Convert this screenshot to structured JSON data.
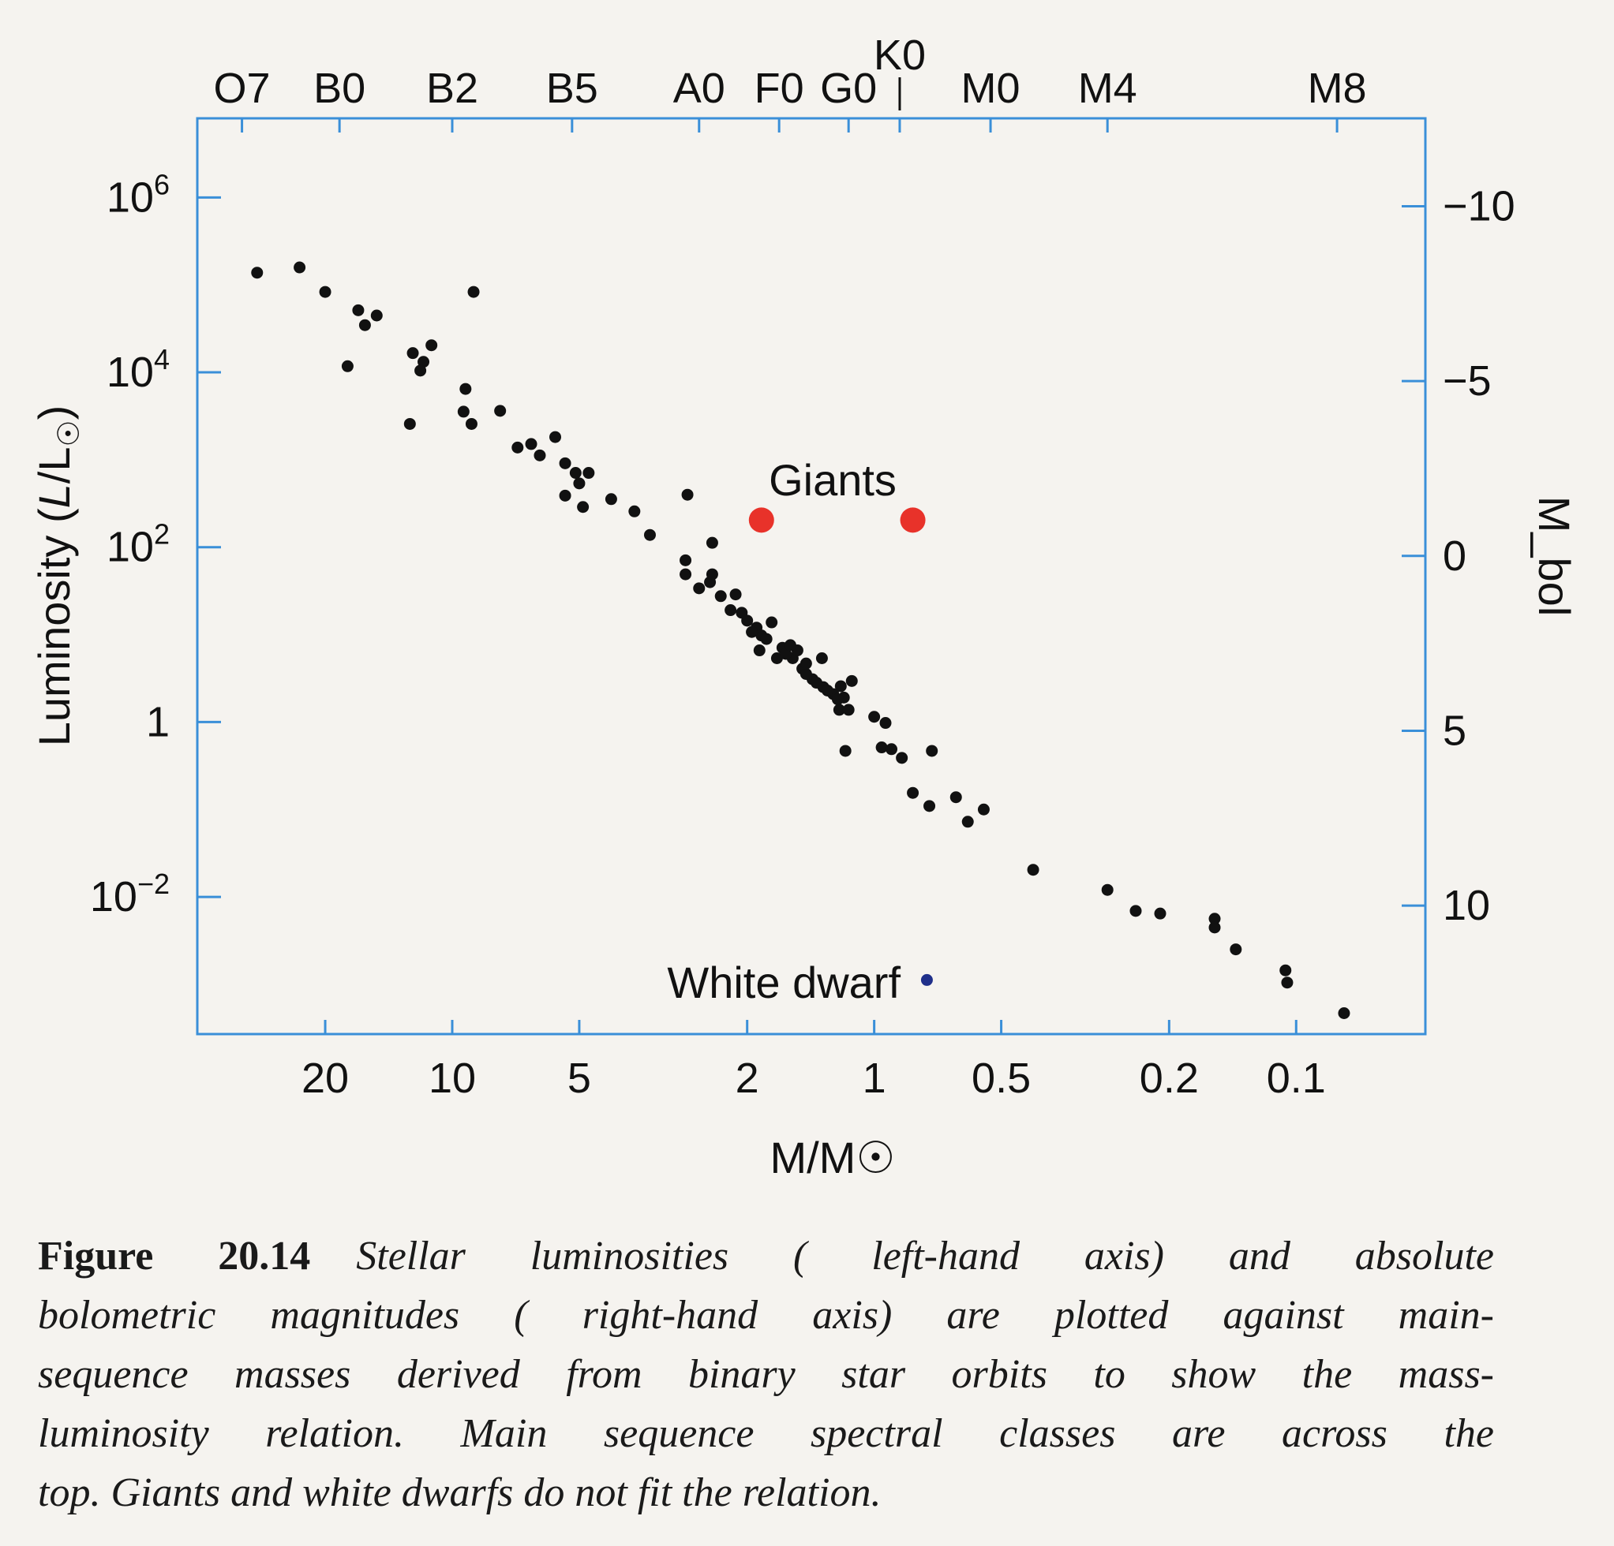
{
  "chart_data": {
    "type": "scatter",
    "title": "",
    "xlabel": "M/M☉",
    "ylabel": "Luminosity (L/L☉)",
    "y2label": "M_bol",
    "x_scale": "log10",
    "x_reversed": true,
    "y_values_are": "log10(L/L☉)",
    "xlim": [
      0.065,
      38
    ],
    "ylim_log10": [
      -3.8,
      6.7
    ],
    "x_ticks": [
      {
        "value": 20,
        "label": "20"
      },
      {
        "value": 10,
        "label": "10"
      },
      {
        "value": 5,
        "label": "5"
      },
      {
        "value": 2,
        "label": "2"
      },
      {
        "value": 1,
        "label": "1"
      },
      {
        "value": 0.5,
        "label": "0.5"
      },
      {
        "value": 0.2,
        "label": "0.2"
      },
      {
        "value": 0.1,
        "label": "0.1"
      }
    ],
    "y_ticks": [
      {
        "value": 6,
        "base": "10",
        "exp": "6"
      },
      {
        "value": 4,
        "base": "10",
        "exp": "4"
      },
      {
        "value": 2,
        "base": "10",
        "exp": "2"
      },
      {
        "value": 0,
        "base": "1",
        "exp": ""
      },
      {
        "value": -2,
        "base": "10",
        "exp": "−2"
      }
    ],
    "y2_ticks": [
      {
        "mbol": -10,
        "label": "−10"
      },
      {
        "mbol": -5,
        "label": "−5"
      },
      {
        "mbol": 0,
        "label": "0"
      },
      {
        "mbol": 5,
        "label": "5"
      },
      {
        "mbol": 10,
        "label": "10"
      }
    ],
    "spectral_classes": [
      {
        "label": "O7",
        "mass": 31.5
      },
      {
        "label": "B0",
        "mass": 18.5
      },
      {
        "label": "B2",
        "mass": 10
      },
      {
        "label": "B5",
        "mass": 5.2
      },
      {
        "label": "A0",
        "mass": 2.6
      },
      {
        "label": "F0",
        "mass": 1.68
      },
      {
        "label": "G0",
        "mass": 1.15
      },
      {
        "label": "K0",
        "mass": 0.87
      },
      {
        "label": "M0",
        "mass": 0.53
      },
      {
        "label": "M4",
        "mass": 0.28
      },
      {
        "label": "M8",
        "mass": 0.08
      }
    ],
    "series": [
      {
        "name": "Main sequence",
        "color": "#111111",
        "points": [
          [
            29,
            5.14
          ],
          [
            23,
            5.2
          ],
          [
            20,
            4.92
          ],
          [
            16.7,
            4.71
          ],
          [
            16.1,
            4.54
          ],
          [
            15.1,
            4.65
          ],
          [
            17.7,
            4.07
          ],
          [
            8.9,
            4.92
          ],
          [
            12.4,
            4.22
          ],
          [
            11.7,
            4.12
          ],
          [
            11.2,
            4.31
          ],
          [
            11.9,
            4.02
          ],
          [
            12.6,
            3.41
          ],
          [
            9.3,
            3.81
          ],
          [
            9.4,
            3.55
          ],
          [
            9.0,
            3.41
          ],
          [
            7.7,
            3.56
          ],
          [
            7.0,
            3.14
          ],
          [
            6.5,
            3.18
          ],
          [
            6.2,
            3.05
          ],
          [
            5.7,
            3.26
          ],
          [
            5.4,
            2.96
          ],
          [
            5.1,
            2.85
          ],
          [
            5.4,
            2.59
          ],
          [
            4.9,
            2.46
          ],
          [
            5.0,
            2.73
          ],
          [
            4.75,
            2.85
          ],
          [
            4.2,
            2.55
          ],
          [
            3.7,
            2.41
          ],
          [
            3.4,
            2.14
          ],
          [
            2.77,
            2.6
          ],
          [
            2.8,
            1.85
          ],
          [
            2.42,
            2.05
          ],
          [
            2.8,
            1.69
          ],
          [
            2.6,
            1.53
          ],
          [
            2.45,
            1.6
          ],
          [
            2.42,
            1.69
          ],
          [
            2.31,
            1.44
          ],
          [
            2.13,
            1.46
          ],
          [
            2.19,
            1.28
          ],
          [
            2.0,
            1.16
          ],
          [
            1.9,
            1.08
          ],
          [
            1.85,
            0.99
          ],
          [
            1.75,
            1.14
          ],
          [
            1.87,
            0.82
          ],
          [
            1.65,
            0.85
          ],
          [
            1.7,
            0.73
          ],
          [
            1.56,
            0.73
          ],
          [
            1.48,
            0.61
          ],
          [
            1.4,
            0.49
          ],
          [
            1.32,
            0.4
          ],
          [
            1.25,
            0.32
          ],
          [
            1.33,
            0.73
          ],
          [
            1.13,
            0.47
          ],
          [
            1.21,
            0.14
          ],
          [
            1.15,
            0.14
          ],
          [
            1.52,
            0.82
          ],
          [
            1.18,
            0.28
          ],
          [
            2.06,
            1.25
          ],
          [
            1.95,
            1.03
          ],
          [
            1.8,
            0.95
          ],
          [
            1.62,
            0.78
          ],
          [
            1.45,
            0.55
          ],
          [
            1.37,
            0.45
          ],
          [
            1.29,
            0.36
          ],
          [
            1.22,
            0.26
          ],
          [
            1.2,
            0.41
          ],
          [
            1.45,
            0.67
          ],
          [
            1.58,
            0.88
          ],
          [
            1.0,
            0.06
          ],
          [
            0.94,
            -0.01
          ],
          [
            1.17,
            -0.33
          ],
          [
            0.96,
            -0.29
          ],
          [
            0.91,
            -0.31
          ],
          [
            0.86,
            -0.41
          ],
          [
            0.73,
            -0.33
          ],
          [
            0.81,
            -0.81
          ],
          [
            0.74,
            -0.96
          ],
          [
            0.64,
            -0.86
          ],
          [
            0.6,
            -1.14
          ],
          [
            0.55,
            -1.0
          ],
          [
            0.42,
            -1.69
          ],
          [
            0.28,
            -1.92
          ],
          [
            0.24,
            -2.16
          ],
          [
            0.21,
            -2.19
          ],
          [
            0.156,
            -2.25
          ],
          [
            0.156,
            -2.35
          ],
          [
            0.139,
            -2.6
          ],
          [
            0.106,
            -2.84
          ],
          [
            0.105,
            -2.98
          ],
          [
            0.077,
            -3.33
          ]
        ]
      },
      {
        "name": "Giants",
        "color": "#e8322a",
        "points": [
          [
            1.85,
            2.31
          ],
          [
            0.81,
            2.31
          ]
        ]
      },
      {
        "name": "White dwarf",
        "color": "#1f2f8a",
        "points": [
          [
            0.75,
            -2.95
          ]
        ]
      }
    ],
    "annotations": {
      "giants": "Giants",
      "white_dwarf": "White dwarf"
    },
    "grid": false,
    "frame_color": "#3a8fd8"
  },
  "caption": {
    "label": "Figure 20.14",
    "lines": [
      "Stellar luminosities ( left-hand axis) and absolute",
      "bolometric magnitudes ( right-hand axis) are plotted against main-",
      "sequence masses derived from binary star orbits to show the mass-",
      "luminosity relation. Main sequence spectral classes are across the",
      "top. Giants and white dwarfs do not fit the relation."
    ]
  }
}
